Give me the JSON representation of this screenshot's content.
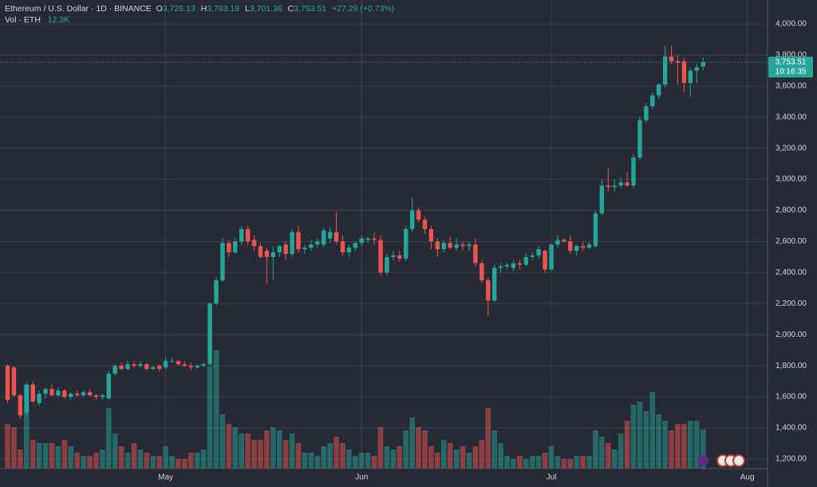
{
  "header": {
    "symbol": "Ethereum / U.S. Dollar · 1D · BINANCE",
    "open_key": "O",
    "open": "3,726.13",
    "high_key": "H",
    "high": "3,783.19",
    "low_key": "L",
    "low": "3,701.36",
    "close_key": "C",
    "close": "3,753.51",
    "change": "+27.29 (+0.73%)",
    "volume_key": "Vol · ETH",
    "volume": "12.3K"
  },
  "chart_data": {
    "type": "candlestick",
    "up_color": "#26a69a",
    "down_color": "#ef5350",
    "xlim": [
      -1.2,
      120.2
    ],
    "xticks": [
      {
        "value": 25,
        "label": "May"
      },
      {
        "value": 56,
        "label": "Jun"
      },
      {
        "value": 86,
        "label": "Jul"
      },
      {
        "value": 117,
        "label": "Aug"
      }
    ],
    "ylim": [
      1138,
      4154
    ],
    "yticks": [
      {
        "value": 1200,
        "label": "1,200.00"
      },
      {
        "value": 1400,
        "label": "1,400.00"
      },
      {
        "value": 1600,
        "label": "1,600.00"
      },
      {
        "value": 1800,
        "label": "1,800.00"
      },
      {
        "value": 2000,
        "label": "2,000.00"
      },
      {
        "value": 2200,
        "label": "2,200.00"
      },
      {
        "value": 2400,
        "label": "2,400.00"
      },
      {
        "value": 2600,
        "label": "2,600.00"
      },
      {
        "value": 2800,
        "label": "2,800.00"
      },
      {
        "value": 3000,
        "label": "3,000.00"
      },
      {
        "value": 3200,
        "label": "3,200.00"
      },
      {
        "value": 3400,
        "label": "3,400.00"
      },
      {
        "value": 3600,
        "label": "3,600.00"
      },
      {
        "value": 3800,
        "label": "3,800.00"
      },
      {
        "value": 4000,
        "label": "4,000.00"
      }
    ],
    "volume_lim": [
      0,
      40
    ],
    "grid": true,
    "last_price_label": "3,753.51",
    "countdown": "10:16:35",
    "series": [
      {
        "open": [
          1800,
          1790,
          1610,
          1500,
          1680,
          1560,
          1620,
          1650,
          1610,
          1640,
          1600,
          1620,
          1610,
          1630,
          1610,
          1600,
          1590,
          1750,
          1800,
          1780,
          1810,
          1800,
          1810,
          1780,
          1800,
          1790,
          1830,
          1830,
          1810,
          1800,
          1790,
          1800,
          1810,
          2200,
          2350,
          2590,
          2530,
          2600,
          2680,
          2610,
          2570,
          2540,
          2500,
          2530,
          2580,
          2520,
          2660,
          2550,
          2560,
          2580,
          2580,
          2620,
          2660,
          2600,
          2530,
          2560,
          2590,
          2610,
          2620,
          2610,
          2400,
          2500,
          2510,
          2490,
          2680,
          2800,
          2740,
          2680,
          2600,
          2550,
          2590,
          2560,
          2580,
          2570,
          2580,
          2460,
          2350,
          2220,
          2430,
          2440,
          2430,
          2460,
          2450,
          2500,
          2510,
          2540,
          2420,
          2580,
          2610,
          2600,
          2540,
          2570,
          2560,
          2570,
          2780,
          2960,
          2950,
          2960,
          2980,
          2960,
          3140,
          3380,
          3470,
          3540,
          3610,
          3790,
          3760,
          3760,
          3620,
          3700,
          3726.13
        ],
        "high": [
          1810,
          1800,
          1620,
          1690,
          1700,
          1640,
          1660,
          1680,
          1660,
          1650,
          1630,
          1640,
          1640,
          1650,
          1620,
          1620,
          1770,
          1810,
          1820,
          1830,
          1830,
          1830,
          1820,
          1800,
          1810,
          1850,
          1850,
          1840,
          1830,
          1820,
          1810,
          1820,
          2210,
          2370,
          2620,
          2610,
          2620,
          2700,
          2700,
          2640,
          2590,
          2560,
          2570,
          2580,
          2600,
          2680,
          2700,
          2580,
          2610,
          2620,
          2690,
          2690,
          2790,
          2640,
          2580,
          2600,
          2640,
          2630,
          2660,
          2640,
          2520,
          2540,
          2540,
          2700,
          2880,
          2820,
          2760,
          2700,
          2620,
          2610,
          2630,
          2620,
          2600,
          2600,
          2620,
          2480,
          2370,
          2450,
          2460,
          2460,
          2480,
          2480,
          2520,
          2530,
          2570,
          2550,
          2590,
          2640,
          2620,
          2640,
          2580,
          2600,
          2600,
          2800,
          3000,
          3070,
          3000,
          3010,
          3050,
          3160,
          3400,
          3490,
          3560,
          3620,
          3860,
          3860,
          3800,
          3780,
          3720,
          3740,
          3783.19
        ],
        "low": [
          1560,
          1600,
          1460,
          1480,
          1560,
          1540,
          1590,
          1600,
          1600,
          1590,
          1580,
          1600,
          1600,
          1600,
          1580,
          1580,
          1580,
          1740,
          1770,
          1770,
          1790,
          1790,
          1770,
          1770,
          1760,
          1780,
          1820,
          1800,
          1790,
          1770,
          1780,
          1790,
          1800,
          2190,
          2340,
          2500,
          2520,
          2580,
          2580,
          2540,
          2490,
          2330,
          2350,
          2500,
          2480,
          2500,
          2530,
          2520,
          2540,
          2560,
          2560,
          2590,
          2580,
          2510,
          2500,
          2540,
          2570,
          2590,
          2580,
          2380,
          2380,
          2480,
          2470,
          2470,
          2660,
          2720,
          2650,
          2550,
          2500,
          2530,
          2550,
          2540,
          2540,
          2540,
          2440,
          2330,
          2120,
          2210,
          2400,
          2420,
          2410,
          2420,
          2440,
          2480,
          2490,
          2400,
          2410,
          2560,
          2590,
          2520,
          2510,
          2540,
          2550,
          2560,
          2770,
          2920,
          2920,
          2940,
          2950,
          2940,
          3120,
          3360,
          3450,
          3520,
          3590,
          3740,
          3610,
          3560,
          3530,
          3620,
          3701.36
        ],
        "close": [
          1580,
          1610,
          1480,
          1680,
          1570,
          1620,
          1650,
          1610,
          1640,
          1600,
          1620,
          1610,
          1630,
          1610,
          1600,
          1610,
          1750,
          1800,
          1780,
          1810,
          1800,
          1810,
          1780,
          1790,
          1780,
          1830,
          1830,
          1810,
          1800,
          1790,
          1800,
          1810,
          2200,
          2350,
          2590,
          2530,
          2600,
          2680,
          2600,
          2570,
          2500,
          2500,
          2530,
          2570,
          2520,
          2660,
          2550,
          2560,
          2580,
          2600,
          2670,
          2660,
          2600,
          2530,
          2560,
          2590,
          2620,
          2620,
          2610,
          2400,
          2500,
          2510,
          2490,
          2680,
          2800,
          2740,
          2680,
          2600,
          2550,
          2590,
          2560,
          2580,
          2570,
          2580,
          2460,
          2350,
          2220,
          2430,
          2440,
          2450,
          2460,
          2450,
          2500,
          2510,
          2550,
          2420,
          2580,
          2610,
          2600,
          2540,
          2570,
          2560,
          2580,
          2780,
          2960,
          2950,
          2960,
          2980,
          2960,
          3140,
          3380,
          3470,
          3540,
          3610,
          3790,
          3760,
          3750,
          3620,
          3700,
          3720,
          3753.51
        ],
        "volume": [
          14,
          13,
          6,
          26,
          9,
          8,
          8,
          8,
          7,
          9,
          7,
          5,
          4,
          4,
          5,
          6,
          19,
          11,
          7,
          5,
          8,
          6,
          5,
          4,
          4,
          7,
          4,
          3,
          3,
          5,
          5,
          6,
          32,
          37,
          17,
          14,
          13,
          11,
          11,
          9,
          9,
          12,
          13,
          12,
          9,
          11,
          8,
          5,
          5,
          4,
          7,
          8,
          10,
          8,
          6,
          4,
          5,
          5,
          4,
          13,
          7,
          6,
          7,
          12,
          16,
          13,
          12,
          7,
          5,
          9,
          8,
          6,
          7,
          5,
          7,
          9,
          19,
          12,
          8,
          4,
          3,
          4,
          3,
          4,
          4,
          5,
          7,
          4,
          3,
          3,
          4,
          4,
          4,
          12,
          10,
          8,
          6,
          11,
          15,
          20,
          21,
          18,
          24,
          17,
          15,
          12,
          14,
          14,
          15,
          15,
          12.3
        ]
      }
    ]
  }
}
